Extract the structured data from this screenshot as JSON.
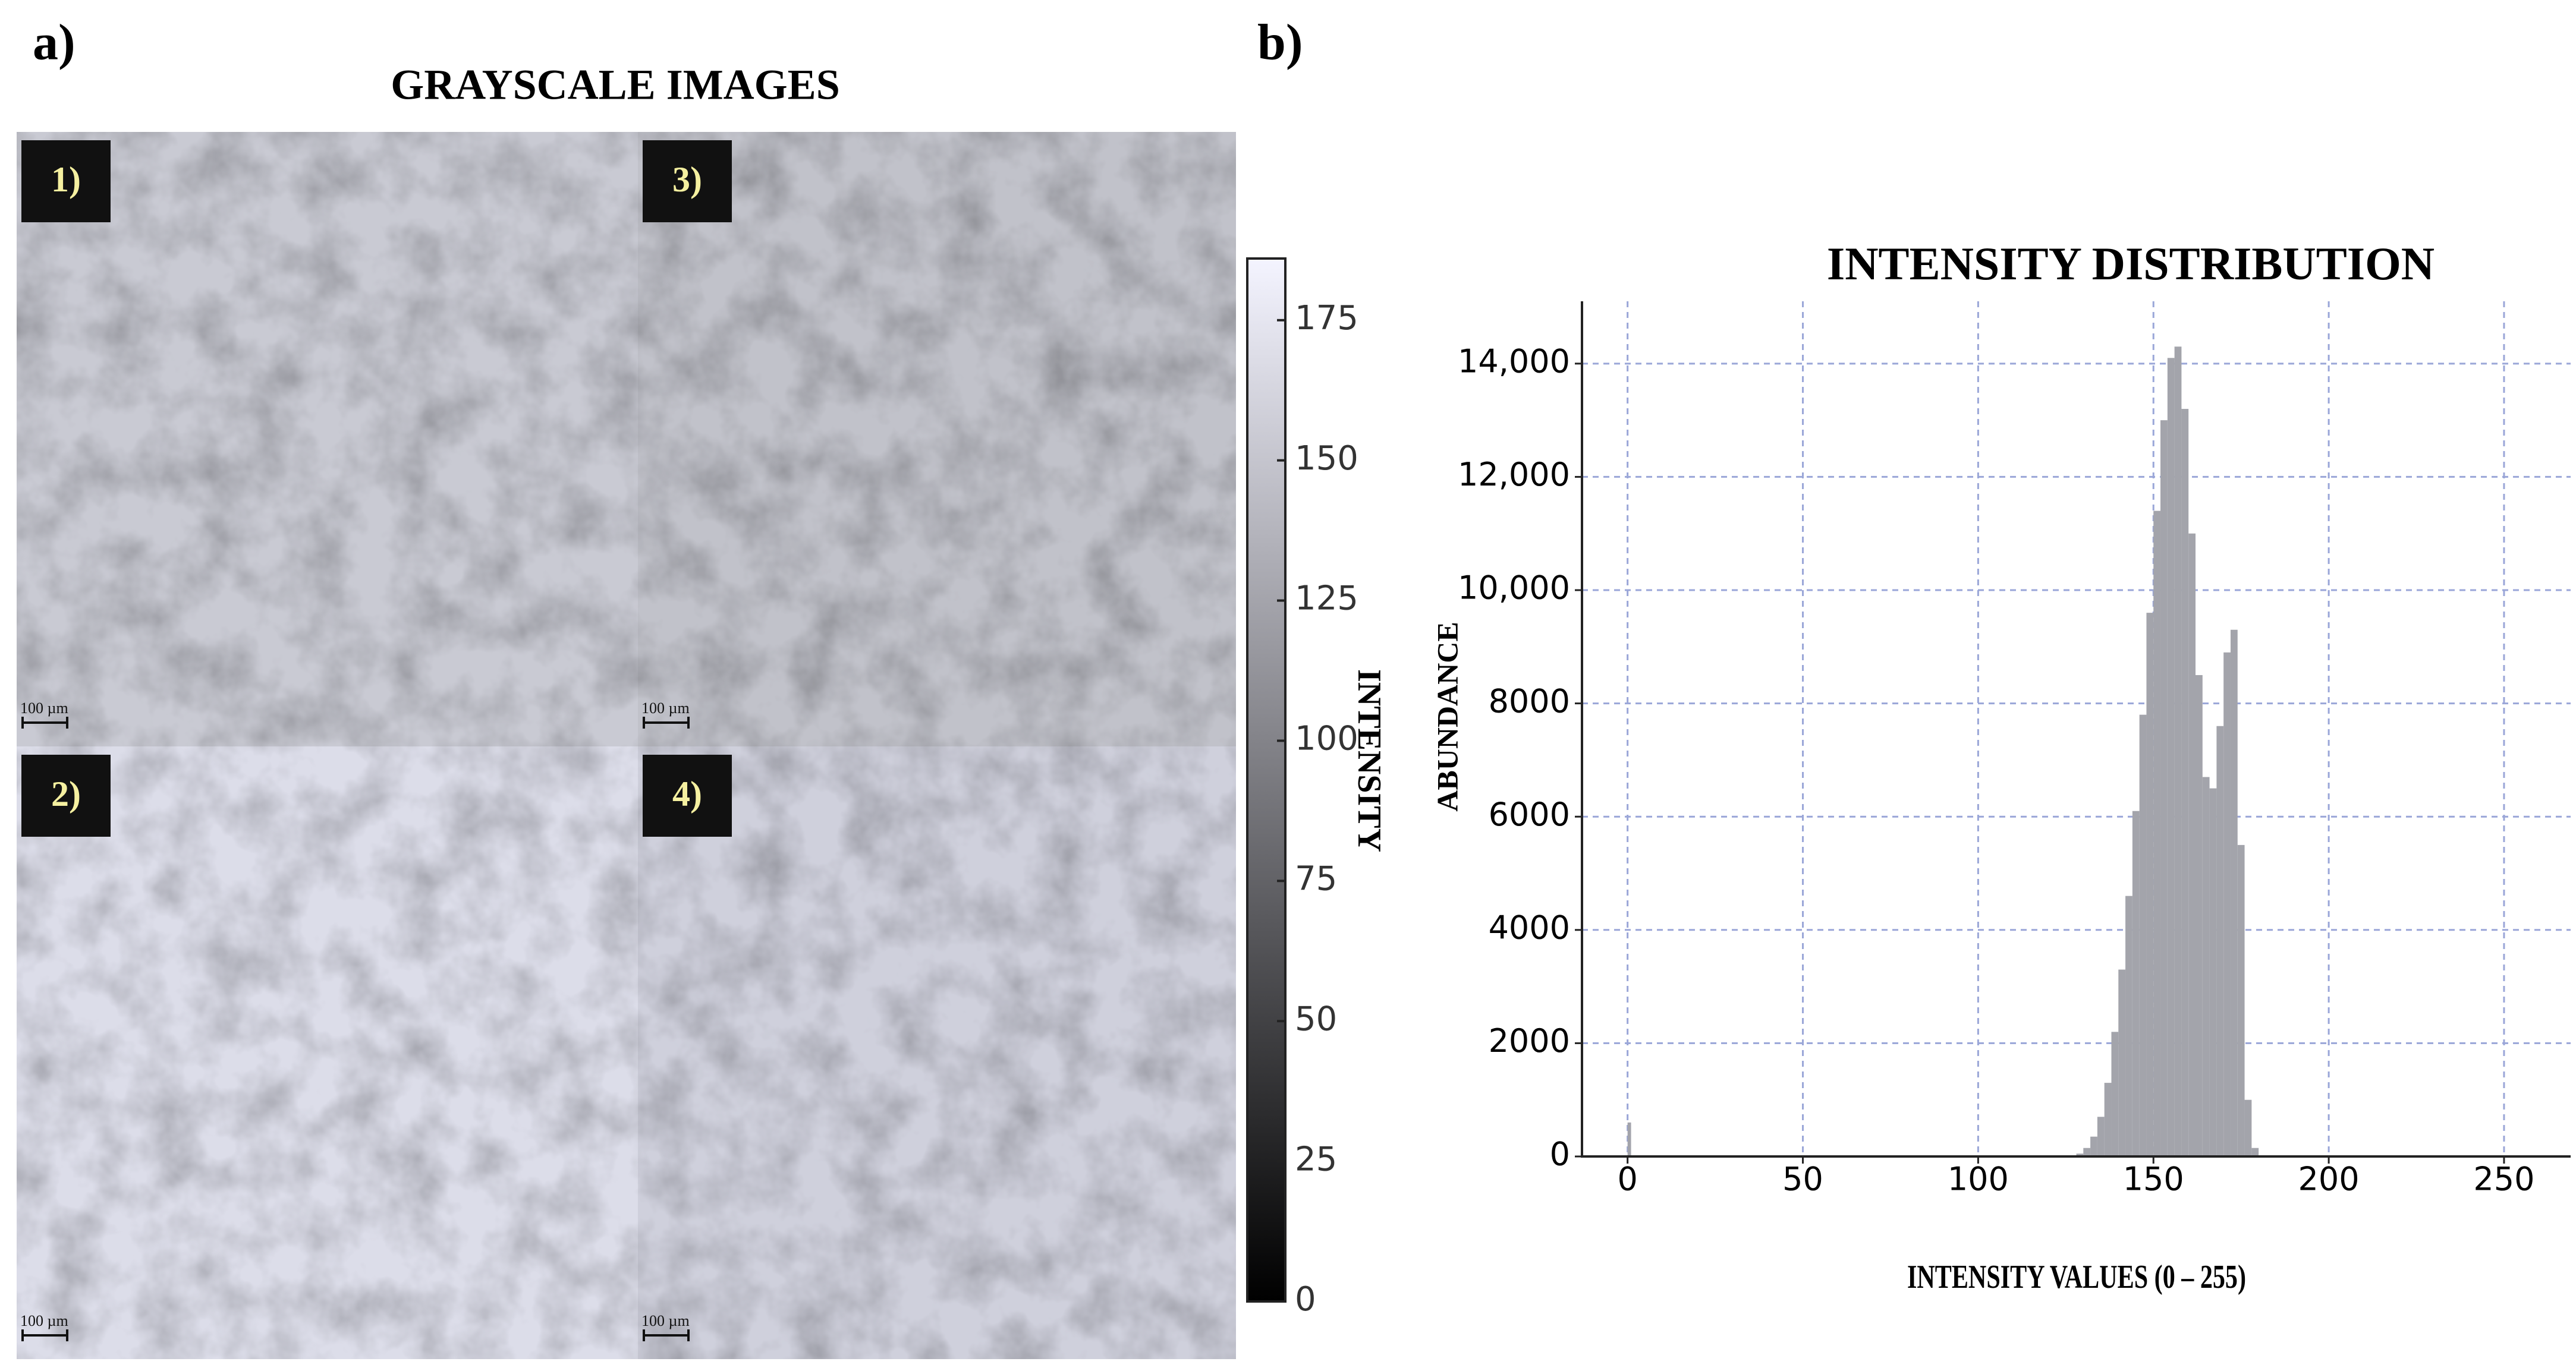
{
  "panels": {
    "a": "a)",
    "b": "b)"
  },
  "images": {
    "title": "GRAYSCALE IMAGES",
    "tiles": [
      {
        "label": "1)",
        "scale": "100 µm"
      },
      {
        "label": "2)",
        "scale": "100 µm"
      },
      {
        "label": "3)",
        "scale": "100 µm"
      },
      {
        "label": "4)",
        "scale": "100 µm"
      }
    ]
  },
  "colorbar": {
    "label": "INTENSITY",
    "lim": [
      0,
      186
    ],
    "ticks": [
      0,
      25,
      50,
      75,
      100,
      125,
      150,
      175
    ]
  },
  "chart_data": {
    "type": "histogram",
    "title": "INTENSITY DISTRIBUTION",
    "x_label": "INTENSITY VALUES (0 – 255)",
    "y_label": "ABUNDANCE",
    "bins": [
      0,
      1,
      126,
      128,
      130,
      132,
      134,
      136,
      138,
      140,
      142,
      144,
      146,
      148,
      150,
      152,
      154,
      156,
      158,
      160,
      162,
      164,
      166,
      168,
      170,
      172,
      174,
      176,
      178,
      180
    ],
    "counts": [
      600,
      0,
      20,
      50,
      150,
      350,
      700,
      1300,
      2200,
      3300,
      4600,
      6100,
      7800,
      9600,
      11400,
      13000,
      14100,
      14300,
      13200,
      11000,
      8500,
      6700,
      6500,
      7600,
      8900,
      9300,
      5500,
      1000,
      150
    ],
    "color": "#a3a4ab",
    "xlim": [
      -13,
      269
    ],
    "ylim": [
      0,
      15100
    ],
    "xticks": [
      0,
      50,
      100,
      150,
      200,
      250
    ],
    "yticks": [
      0,
      2000,
      4000,
      6000,
      8000,
      {
        "value": 10000,
        "label": "10,000"
      },
      {
        "value": 12000,
        "label": "12,000"
      },
      {
        "value": 14000,
        "label": "14,000"
      }
    ],
    "grid": true
  }
}
